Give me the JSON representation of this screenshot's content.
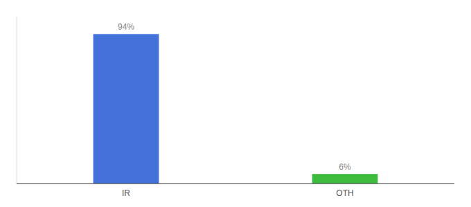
{
  "chart_data": {
    "type": "bar",
    "categories": [
      "IR",
      "OTH"
    ],
    "values": [
      94,
      6
    ],
    "value_labels": [
      "94%",
      "6%"
    ],
    "colors": [
      "#4472DB",
      "#3DBB3D"
    ],
    "ylim": [
      0,
      105
    ],
    "data_labels": true,
    "tick_labels": "x",
    "grid": false
  }
}
